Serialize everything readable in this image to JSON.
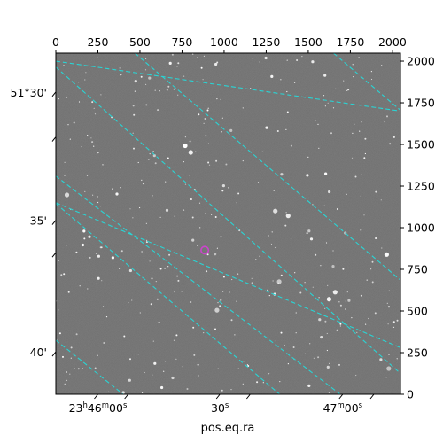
{
  "chart_data": {
    "type": "scatter",
    "description_axes": "sky image with pixel axes and equatorial coordinate grid",
    "xlabel": "pos.eq.ra",
    "ylabel": "",
    "pixel_axes": {
      "xlim": [
        0,
        2048
      ],
      "ylim": [
        0,
        2048
      ],
      "x_ticks": [
        0,
        250,
        500,
        750,
        1000,
        1250,
        1500,
        1750,
        2000
      ],
      "y_ticks": [
        0,
        250,
        500,
        750,
        1000,
        1250,
        1500,
        1750,
        2000
      ]
    },
    "ra_ticks": [
      {
        "label_parts": [
          "23",
          "h",
          "46",
          "m",
          "00",
          "s"
        ],
        "x": 250
      },
      {
        "label_parts": [
          "30",
          "s"
        ],
        "x": 975
      },
      {
        "label_parts": [
          "47",
          "m",
          "00",
          "s"
        ],
        "x": 1705
      }
    ],
    "dec_ticks": [
      {
        "label": "51°30'",
        "y": 1815
      },
      {
        "label": "35'",
        "y": 1045
      },
      {
        "label": "40'",
        "y": 255
      }
    ],
    "grid": {
      "color": "#2ad4d4",
      "style": "dashed",
      "ra_lines": [
        [
          [
            470,
            2048
          ],
          [
            2048,
            685
          ]
        ],
        [
          [
            0,
            1965
          ],
          [
            2048,
            125
          ]
        ],
        [
          [
            0,
            1145
          ],
          [
            1330,
            0
          ]
        ],
        [
          [
            0,
            325
          ],
          [
            400,
            0
          ]
        ]
      ],
      "dec_lines": [
        [
          [
            0,
            2000
          ],
          [
            2048,
            1700
          ]
        ],
        [
          [
            0,
            1150
          ],
          [
            2048,
            280
          ]
        ]
      ],
      "dec_lines_steep": [
        [
          [
            1650,
            2048
          ],
          [
            2048,
            1705
          ]
        ],
        [
          [
            0,
            1310
          ],
          [
            1690,
            0
          ]
        ]
      ]
    },
    "marker": {
      "x": 885,
      "y": 865,
      "color": "#cc44cc",
      "shape": "circle"
    },
    "image": {
      "background": "#6b6b6b",
      "star_color": "#ffffff"
    }
  }
}
